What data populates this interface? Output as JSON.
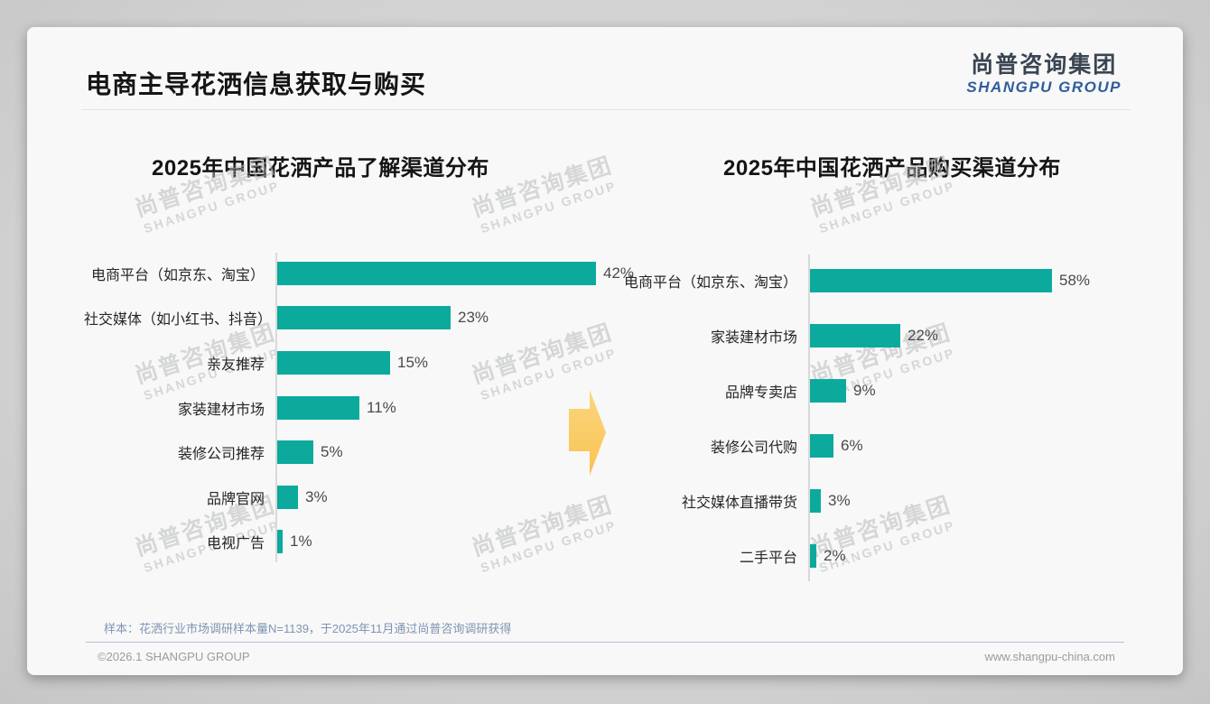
{
  "page": {
    "title": "电商主导花洒信息获取与购买",
    "logo": {
      "cn": "尚普咨询集团",
      "en": "SHANGPU GROUP"
    },
    "watermark": {
      "cn": "尚普咨询集团",
      "en": "SHANGPU GROUP"
    },
    "sample_note": "样本：花洒行业市场调研样本量N=1139，于2025年11月通过尚普咨询调研获得",
    "footer_left": "©2026.1 SHANGPU GROUP",
    "footer_right": "www.shangpu-china.com"
  },
  "colors": {
    "bar": "#0CAA9D",
    "arrow": "#FACC66",
    "logo_blue": "#2F5D9C"
  },
  "chart_data": [
    {
      "type": "bar",
      "orientation": "horizontal",
      "title": "2025年中国花洒产品了解渠道分布",
      "categories": [
        "电商平台（如京东、淘宝）",
        "社交媒体（如小红书、抖音）",
        "亲友推荐",
        "家装建材市场",
        "装修公司推荐",
        "品牌官网",
        "电视广告"
      ],
      "values": [
        42,
        23,
        15,
        11,
        5,
        3,
        1
      ],
      "unit": "%",
      "xlim": [
        0,
        42
      ],
      "grid": false,
      "value_labels_shown": true
    },
    {
      "type": "bar",
      "orientation": "horizontal",
      "title": "2025年中国花洒产品购买渠道分布",
      "categories": [
        "电商平台（如京东、淘宝）",
        "家装建材市场",
        "品牌专卖店",
        "装修公司代购",
        "社交媒体直播带货",
        "二手平台"
      ],
      "values": [
        58,
        22,
        9,
        6,
        3,
        2
      ],
      "unit": "%",
      "xlim": [
        0,
        58
      ],
      "grid": false,
      "value_labels_shown": true
    }
  ]
}
